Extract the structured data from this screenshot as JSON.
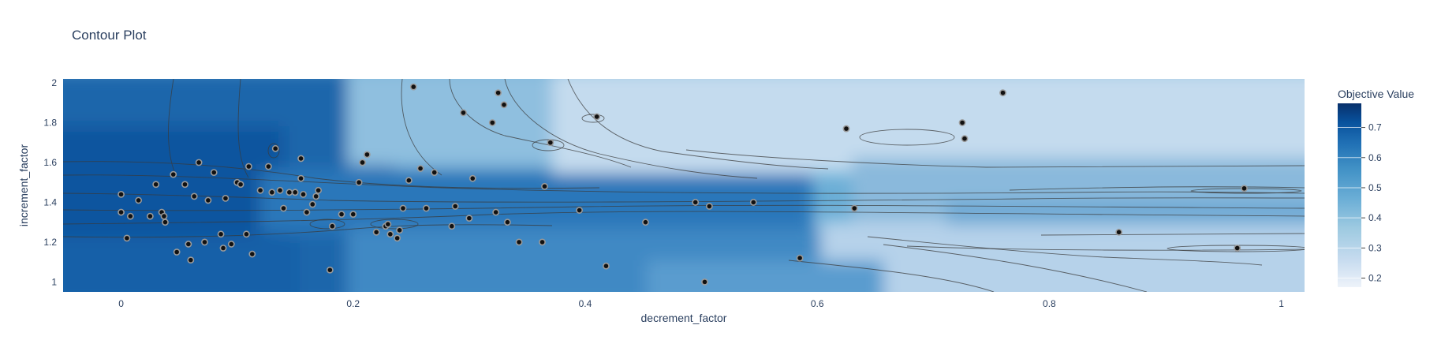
{
  "chart_data": {
    "type": "contour",
    "title": "Contour Plot",
    "xlabel": "decrement_factor",
    "ylabel": "increment_factor",
    "xlim": [
      -0.05,
      1.02
    ],
    "ylim": [
      0.95,
      2.02
    ],
    "x_ticks": [
      0,
      0.2,
      0.4,
      0.6,
      0.8,
      1
    ],
    "x_tick_labels": [
      "0",
      "0.2",
      "0.4",
      "0.6",
      "0.8",
      "1"
    ],
    "y_ticks": [
      1,
      1.2,
      1.4,
      1.6,
      1.8,
      2
    ],
    "y_tick_labels": [
      "1",
      "1.2",
      "1.4",
      "1.6",
      "1.8",
      "2"
    ],
    "colorbar": {
      "title": "Objective Value",
      "range": [
        0.17,
        0.78
      ],
      "ticks": [
        0.2,
        0.3,
        0.4,
        0.5,
        0.6,
        0.7
      ],
      "tick_labels": [
        "0.2",
        "0.3",
        "0.4",
        "0.5",
        "0.6",
        "0.7"
      ],
      "colorscale": [
        "#eef3fa",
        "#c6dbef",
        "#9ecae1",
        "#6baed6",
        "#4292c6",
        "#2171b5",
        "#08519c",
        "#08306b"
      ]
    },
    "points": [
      {
        "x": 0.0,
        "y": 1.44
      },
      {
        "x": 0.0,
        "y": 1.35
      },
      {
        "x": 0.005,
        "y": 1.22
      },
      {
        "x": 0.008,
        "y": 1.33
      },
      {
        "x": 0.015,
        "y": 1.41
      },
      {
        "x": 0.025,
        "y": 1.33
      },
      {
        "x": 0.03,
        "y": 1.49
      },
      {
        "x": 0.035,
        "y": 1.35
      },
      {
        "x": 0.037,
        "y": 1.33
      },
      {
        "x": 0.038,
        "y": 1.3
      },
      {
        "x": 0.045,
        "y": 1.54
      },
      {
        "x": 0.048,
        "y": 1.15
      },
      {
        "x": 0.055,
        "y": 1.49
      },
      {
        "x": 0.058,
        "y": 1.19
      },
      {
        "x": 0.06,
        "y": 1.11
      },
      {
        "x": 0.063,
        "y": 1.43
      },
      {
        "x": 0.067,
        "y": 1.6
      },
      {
        "x": 0.072,
        "y": 1.2
      },
      {
        "x": 0.075,
        "y": 1.41
      },
      {
        "x": 0.08,
        "y": 1.55
      },
      {
        "x": 0.086,
        "y": 1.24
      },
      {
        "x": 0.088,
        "y": 1.17
      },
      {
        "x": 0.09,
        "y": 1.42
      },
      {
        "x": 0.095,
        "y": 1.19
      },
      {
        "x": 0.1,
        "y": 1.5
      },
      {
        "x": 0.103,
        "y": 1.49
      },
      {
        "x": 0.108,
        "y": 1.24
      },
      {
        "x": 0.11,
        "y": 1.58
      },
      {
        "x": 0.113,
        "y": 1.14
      },
      {
        "x": 0.12,
        "y": 1.46
      },
      {
        "x": 0.127,
        "y": 1.58
      },
      {
        "x": 0.13,
        "y": 1.45
      },
      {
        "x": 0.133,
        "y": 1.67
      },
      {
        "x": 0.137,
        "y": 1.46
      },
      {
        "x": 0.14,
        "y": 1.37
      },
      {
        "x": 0.145,
        "y": 1.45
      },
      {
        "x": 0.15,
        "y": 1.45
      },
      {
        "x": 0.155,
        "y": 1.62
      },
      {
        "x": 0.155,
        "y": 1.52
      },
      {
        "x": 0.157,
        "y": 1.44
      },
      {
        "x": 0.16,
        "y": 1.35
      },
      {
        "x": 0.165,
        "y": 1.39
      },
      {
        "x": 0.168,
        "y": 1.43
      },
      {
        "x": 0.17,
        "y": 1.46
      },
      {
        "x": 0.18,
        "y": 1.06
      },
      {
        "x": 0.182,
        "y": 1.28
      },
      {
        "x": 0.19,
        "y": 1.34
      },
      {
        "x": 0.2,
        "y": 1.34
      },
      {
        "x": 0.205,
        "y": 1.5
      },
      {
        "x": 0.208,
        "y": 1.6
      },
      {
        "x": 0.212,
        "y": 1.64
      },
      {
        "x": 0.22,
        "y": 1.25
      },
      {
        "x": 0.228,
        "y": 1.28
      },
      {
        "x": 0.23,
        "y": 1.29
      },
      {
        "x": 0.232,
        "y": 1.24
      },
      {
        "x": 0.238,
        "y": 1.22
      },
      {
        "x": 0.24,
        "y": 1.26
      },
      {
        "x": 0.243,
        "y": 1.37
      },
      {
        "x": 0.248,
        "y": 1.51
      },
      {
        "x": 0.252,
        "y": 1.98
      },
      {
        "x": 0.258,
        "y": 1.57
      },
      {
        "x": 0.263,
        "y": 1.37
      },
      {
        "x": 0.27,
        "y": 1.55
      },
      {
        "x": 0.285,
        "y": 1.28
      },
      {
        "x": 0.288,
        "y": 1.38
      },
      {
        "x": 0.295,
        "y": 1.85
      },
      {
        "x": 0.3,
        "y": 1.32
      },
      {
        "x": 0.303,
        "y": 1.52
      },
      {
        "x": 0.32,
        "y": 1.8
      },
      {
        "x": 0.323,
        "y": 1.35
      },
      {
        "x": 0.325,
        "y": 1.95
      },
      {
        "x": 0.33,
        "y": 1.89
      },
      {
        "x": 0.333,
        "y": 1.3
      },
      {
        "x": 0.343,
        "y": 1.2
      },
      {
        "x": 0.363,
        "y": 1.2
      },
      {
        "x": 0.365,
        "y": 1.48
      },
      {
        "x": 0.37,
        "y": 1.7
      },
      {
        "x": 0.395,
        "y": 1.36
      },
      {
        "x": 0.41,
        "y": 1.83
      },
      {
        "x": 0.418,
        "y": 1.08
      },
      {
        "x": 0.452,
        "y": 1.3
      },
      {
        "x": 0.495,
        "y": 1.4
      },
      {
        "x": 0.503,
        "y": 1.0
      },
      {
        "x": 0.507,
        "y": 1.38
      },
      {
        "x": 0.545,
        "y": 1.4
      },
      {
        "x": 0.585,
        "y": 1.12
      },
      {
        "x": 0.625,
        "y": 1.77
      },
      {
        "x": 0.632,
        "y": 1.37
      },
      {
        "x": 0.725,
        "y": 1.8
      },
      {
        "x": 0.727,
        "y": 1.72
      },
      {
        "x": 0.76,
        "y": 1.95
      },
      {
        "x": 0.86,
        "y": 1.25
      },
      {
        "x": 0.962,
        "y": 1.17
      },
      {
        "x": 0.968,
        "y": 1.47
      }
    ]
  }
}
